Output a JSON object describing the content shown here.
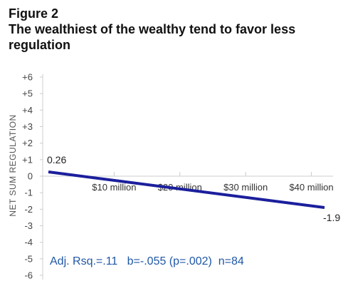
{
  "figure": {
    "label": "Figure 2",
    "title": "The wealthiest of the wealthy tend to favor less regulation"
  },
  "chart_data": {
    "type": "line",
    "title": "The wealthiest of the wealthy tend to favor less regulation",
    "xlabel": "",
    "ylabel": "NET SUM REGULATION",
    "ylim": [
      -6,
      6
    ],
    "y_ticks": [
      "+6",
      "+5",
      "+4",
      "+3",
      "+2",
      "+1",
      "0",
      "-1",
      "-2",
      "-3",
      "-4",
      "-5",
      "-6"
    ],
    "x_ticks": [
      "$10 million",
      "$20 million",
      "$30 million",
      "$40 million"
    ],
    "x_tick_values": [
      10,
      20,
      30,
      40
    ],
    "xlim": [
      0,
      42
    ],
    "series": [
      {
        "x": [
          0,
          42
        ],
        "y": [
          0.26,
          -1.9
        ],
        "color": "#1b1f9c"
      }
    ],
    "data_labels": [
      {
        "text": "0.26",
        "x": 0,
        "y": 0.26
      },
      {
        "text": "-1.9",
        "x": 42,
        "y": -1.9
      }
    ],
    "annotation": "Adj. Rsq.=.11   b=-.055 (p=.002)  n=84",
    "grid": false,
    "colors": {
      "line": "#1b1f9c",
      "annotation": "#1f57a6",
      "axis": "#cccccc"
    }
  }
}
